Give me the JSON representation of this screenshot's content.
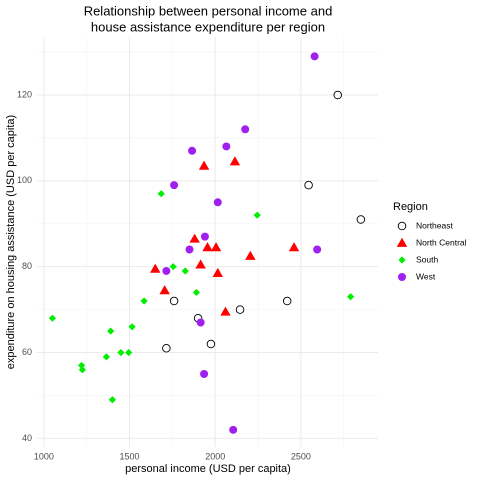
{
  "chart_data": {
    "type": "scatter",
    "title": [
      "Relationship between personal income and",
      "house assistance expenditure per region"
    ],
    "x_label": "personal income (USD per capita)",
    "y_label": "expenditure on housing assistance (USD per capita)",
    "xlim": [
      960,
      2950
    ],
    "xticks": [
      1000,
      1500,
      2000,
      2500
    ],
    "ylim": [
      38,
      133.5
    ],
    "yticks": [
      40,
      60,
      80,
      100,
      120
    ],
    "grid": true,
    "legend": {
      "title": "Region",
      "position": "right"
    },
    "series": [
      {
        "name": "Northeast",
        "color": "#000000",
        "marker": "circle-open",
        "x": [
          2715,
          2545,
          2850,
          2420,
          2145,
          1760,
          1900,
          1975,
          1715
        ],
        "values": [
          120,
          99,
          91,
          72,
          70,
          72,
          68,
          62,
          61
        ]
      },
      {
        "name": "North Central",
        "color": "#ff0000",
        "marker": "triangle",
        "x": [
          1935,
          2115,
          1880,
          2005,
          1955,
          2460,
          1650,
          1915,
          2015,
          2205,
          1705,
          2060
        ],
        "values": [
          103.5,
          104.5,
          86.5,
          84.5,
          84.5,
          84.5,
          79.5,
          80.5,
          78.5,
          82.5,
          74.5,
          69.5
        ]
      },
      {
        "name": "South",
        "color": "#00ee00",
        "marker": "diamond",
        "x": [
          1685,
          2245,
          1755,
          1825,
          1890,
          1585,
          2790,
          1050,
          1515,
          1390,
          1220,
          1225,
          1365,
          1450,
          1495,
          1400
        ],
        "values": [
          97,
          92,
          80,
          79,
          74,
          72,
          73,
          68,
          66,
          65,
          57,
          56,
          59,
          60,
          60,
          49
        ]
      },
      {
        "name": "West",
        "color": "#a020f0",
        "marker": "circle",
        "x": [
          2580,
          2175,
          2065,
          1865,
          1760,
          2015,
          1940,
          1850,
          2595,
          1715,
          1915,
          1935,
          2105
        ],
        "values": [
          129,
          112,
          108,
          107,
          99,
          95,
          87,
          84,
          84,
          79,
          67,
          55,
          42
        ]
      }
    ]
  }
}
